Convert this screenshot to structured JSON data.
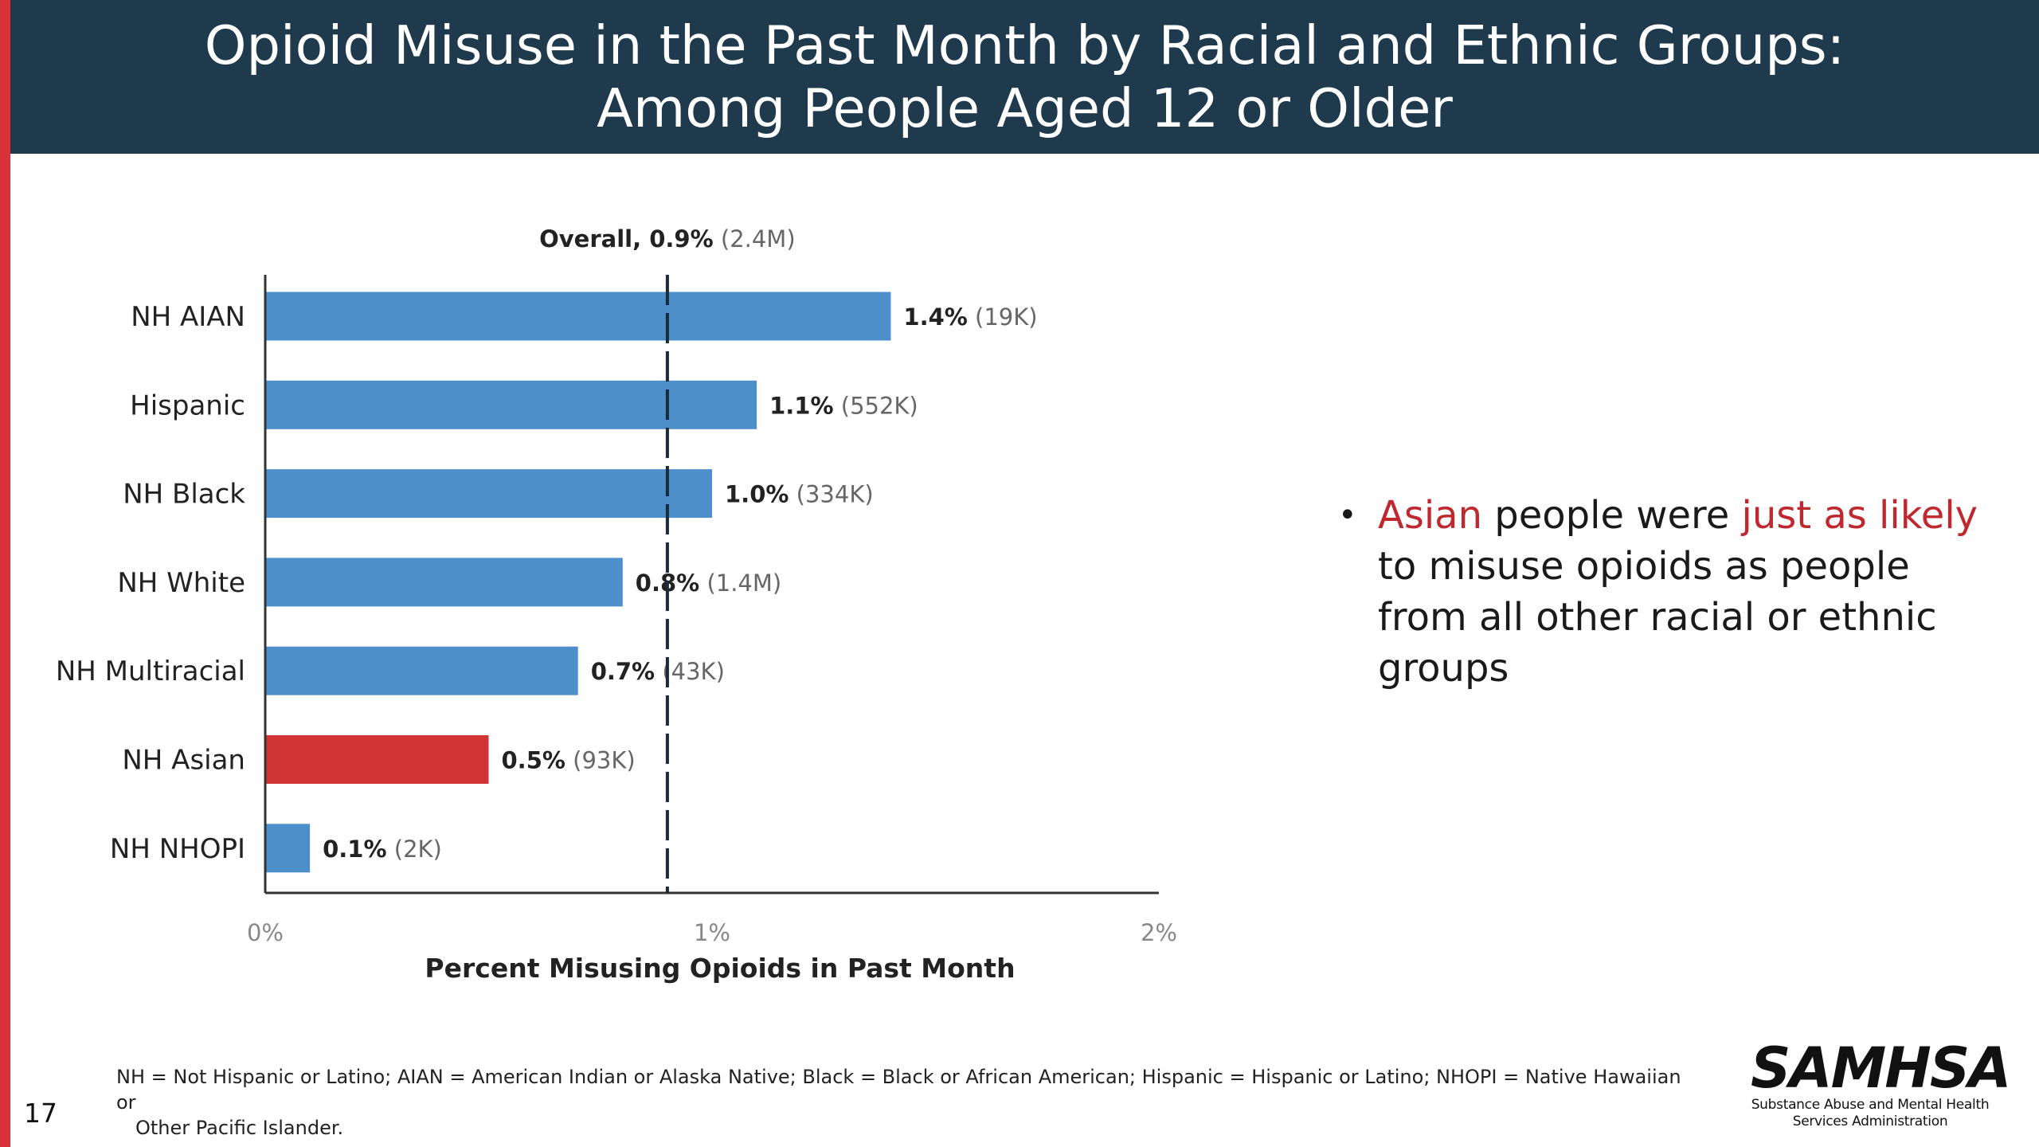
{
  "header": {
    "title_line1": "Opioid Misuse in the Past Month by Racial and Ethnic Groups:",
    "title_line2": "Among People Aged 12 or Older"
  },
  "chart_data": {
    "type": "bar",
    "orientation": "horizontal",
    "categories": [
      "NH AIAN",
      "Hispanic",
      "NH Black",
      "NH White",
      "NH Multiracial",
      "NH Asian",
      "NH NHOPI"
    ],
    "values": [
      1.4,
      1.1,
      1.0,
      0.8,
      0.7,
      0.5,
      0.1
    ],
    "value_labels": [
      "1.4%",
      "1.1%",
      "1.0%",
      "0.8%",
      "0.7%",
      "0.5%",
      "0.1%"
    ],
    "count_labels": [
      "(19K)",
      "(552K)",
      "(334K)",
      "(1.4M)",
      "(43K)",
      "(93K)",
      "(2K)"
    ],
    "highlight_category": "NH Asian",
    "xlim": [
      0,
      2
    ],
    "xticks": [
      "0%",
      "1%",
      "2%"
    ],
    "xlabel": "Percent Misusing Opioids in Past Month",
    "reference_line": {
      "value": 0.9,
      "label": "Overall, 0.9%",
      "count": "(2.4M)"
    },
    "colors": {
      "bar": "#4d8fcb",
      "highlight": "#d03434",
      "reference": "#1a2b3a",
      "axis": "#333333"
    }
  },
  "callout": {
    "bullet": "•",
    "parts": [
      {
        "text": "Asian",
        "highlight": true
      },
      {
        "text": " people were ",
        "highlight": false
      },
      {
        "text": "just as likely",
        "highlight": true
      },
      {
        "text": " to misuse opioids as people from all other racial or ethnic groups",
        "highlight": false
      }
    ]
  },
  "footnote": {
    "line1": "NH = Not Hispanic or Latino; AIAN = American Indian or Alaska Native; Black = Black or African American; Hispanic = Hispanic or Latino; NHOPI = Native Hawaiian or",
    "line2": "Other Pacific Islander."
  },
  "page_number": "17",
  "logo": {
    "wordmark": "SAMHSA",
    "subtitle_line1": "Substance Abuse and Mental Health",
    "subtitle_line2": "Services Administration"
  }
}
